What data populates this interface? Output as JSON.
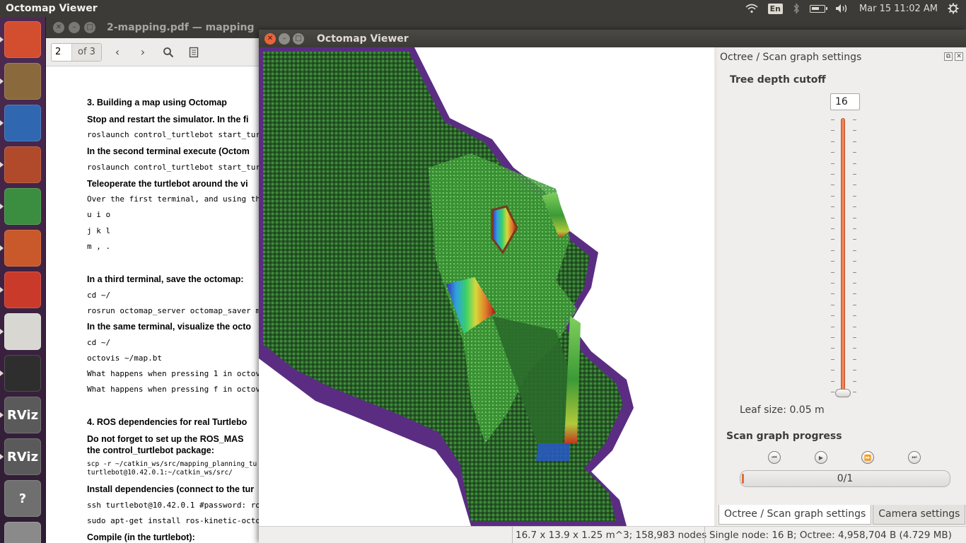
{
  "top_panel": {
    "app_title": "Octomap Viewer",
    "keyboard_layout": "En",
    "datetime": "Mar 15 11:02 AM"
  },
  "launcher": {
    "items": [
      {
        "name": "ubuntu-dash-icon",
        "color": "#d34d2f"
      },
      {
        "name": "files-icon",
        "color": "#8a6a3c"
      },
      {
        "name": "libreoffice-writer-icon",
        "color": "#2f67b0"
      },
      {
        "name": "system-settings-icon",
        "color": "#b04a2a"
      },
      {
        "name": "chrome-icon",
        "color": "#3b8d3f"
      },
      {
        "name": "matlab-icon",
        "color": "#c9582a"
      },
      {
        "name": "document-viewer-icon",
        "color": "#c93a2a"
      },
      {
        "name": "text-editor-icon",
        "color": "#d9d7d2"
      },
      {
        "name": "terminal-icon",
        "color": "#2e2e2e"
      },
      {
        "name": "rviz-icon",
        "label": "RViz",
        "color": "#5a5a5a"
      },
      {
        "name": "rviz-icon",
        "label": "RViz",
        "color": "#5a5a5a"
      },
      {
        "name": "help-icon",
        "label": "?",
        "color": "#6f6f6f"
      },
      {
        "name": "trash-icon",
        "color": "#8a8a8a"
      }
    ]
  },
  "pdf_window": {
    "title": "2-mapping.pdf — mapping",
    "page_value": "2",
    "page_total": "of 3",
    "lines": [
      {
        "text": "3. Building a map using Octomap",
        "style": "h"
      },
      {
        "text": "Stop and restart the simulator. In the fi",
        "style": "h"
      },
      {
        "text": "roslaunch control_turtlebot start_tur",
        "style": "mono"
      },
      {
        "text": "In the second terminal execute (Octom",
        "style": "h"
      },
      {
        "text": "roslaunch control_turtlebot start_tur",
        "style": "mono"
      },
      {
        "text": "Teleoperate the turtlebot around the vi",
        "style": "h"
      },
      {
        "text": "Over the first terminal, and using th",
        "style": "mono"
      },
      {
        "text": "u      i      o",
        "style": "mono"
      },
      {
        "text": "j      k      l",
        "style": "mono"
      },
      {
        "text": "m      ,      .",
        "style": "mono"
      },
      {
        "text": "In a third terminal, save the octomap:",
        "style": "h"
      },
      {
        "text": "cd ~/",
        "style": "mono"
      },
      {
        "text": "rosrun octomap_server octomap_saver m",
        "style": "mono"
      },
      {
        "text": "In the same terminal, visualize the octo",
        "style": "h"
      },
      {
        "text": "cd ~/",
        "style": "mono"
      },
      {
        "text": "octovis ~/map.bt",
        "style": "mono"
      },
      {
        "text": "What happens when pressing 1 in octov",
        "style": "mono"
      },
      {
        "text": "What happens when pressing f in octov",
        "style": "mono"
      },
      {
        "text": "4. ROS dependencies for real Turtlebo",
        "style": "h"
      },
      {
        "text": "Do not forget to set up the ROS_MAS",
        "style": "h"
      },
      {
        "text": "the control_turtlebot package:",
        "style": "h"
      },
      {
        "text": "scp -r ~/catkin_ws/src/mapping_planning_tu",
        "style": "mono-s"
      },
      {
        "text": "turtlebot@10.42.0.1:~/catkin_ws/src/",
        "style": "mono-s"
      },
      {
        "text": "Install dependencies (connect to the tur",
        "style": "h"
      },
      {
        "text": "ssh turtlebot@10.42.0.1 #password: ro",
        "style": "mono"
      },
      {
        "text": "sudo apt-get install ros-kinetic-octo",
        "style": "mono"
      },
      {
        "text": "Compile (in the turtlebot):",
        "style": "h"
      }
    ]
  },
  "octomap_window": {
    "title": "Octomap Viewer",
    "dock": {
      "title": "Octree / Scan graph settings",
      "tree_depth_label": "Tree depth cutoff",
      "tree_depth_value": "16",
      "slider_level": 16,
      "slider_max": 16,
      "leaf_size_label": "Leaf size:  0.05 m",
      "scan_graph_label": "Scan graph progress",
      "progress_text": "0/1",
      "progress_fraction": 0.0,
      "tabs": [
        "Octree / Scan graph settings",
        "Camera settings"
      ]
    },
    "status": {
      "dimensions": "16.7 x 13.9 x 1.25 m^3; 158,983 nodes",
      "memory": "Single node: 16 B; Octree: 4,958,704 B (4.729 MB)"
    },
    "colors": {
      "voxel_dark": "#1f4d1f",
      "voxel_green": "#2f8a2f",
      "voxel_light": "#7bd06a",
      "voxel_edge": "#5a2d82"
    }
  }
}
